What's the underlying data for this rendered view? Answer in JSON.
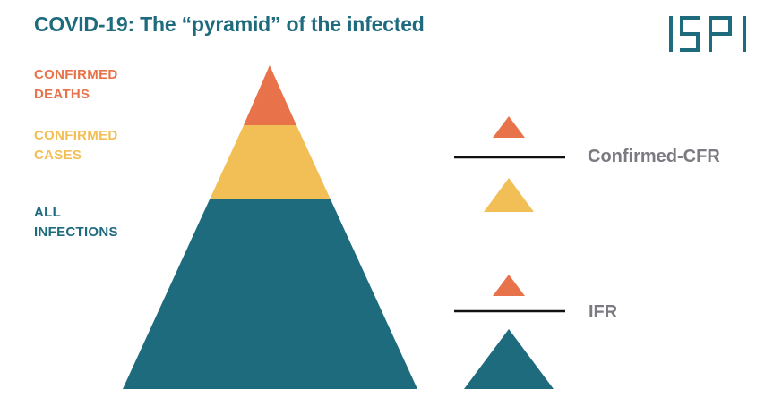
{
  "title": "COVID-19: The “pyramid” of the infected",
  "logo_text": "ISPI",
  "colors": {
    "deaths": "#e8734a",
    "cases": "#f2bf56",
    "infections": "#1f6b7e",
    "ratio_label": "#7a7a80"
  },
  "layers": {
    "deaths": {
      "line1": "CONFIRMED",
      "line2": "DEATHS"
    },
    "cases": {
      "line1": "CONFIRMED",
      "line2": "CASES"
    },
    "infections": {
      "line1": "ALL",
      "line2": "INFECTIONS"
    }
  },
  "ratios": {
    "confirmed_cfr": "Confirmed-CFR",
    "ifr": "IFR"
  }
}
